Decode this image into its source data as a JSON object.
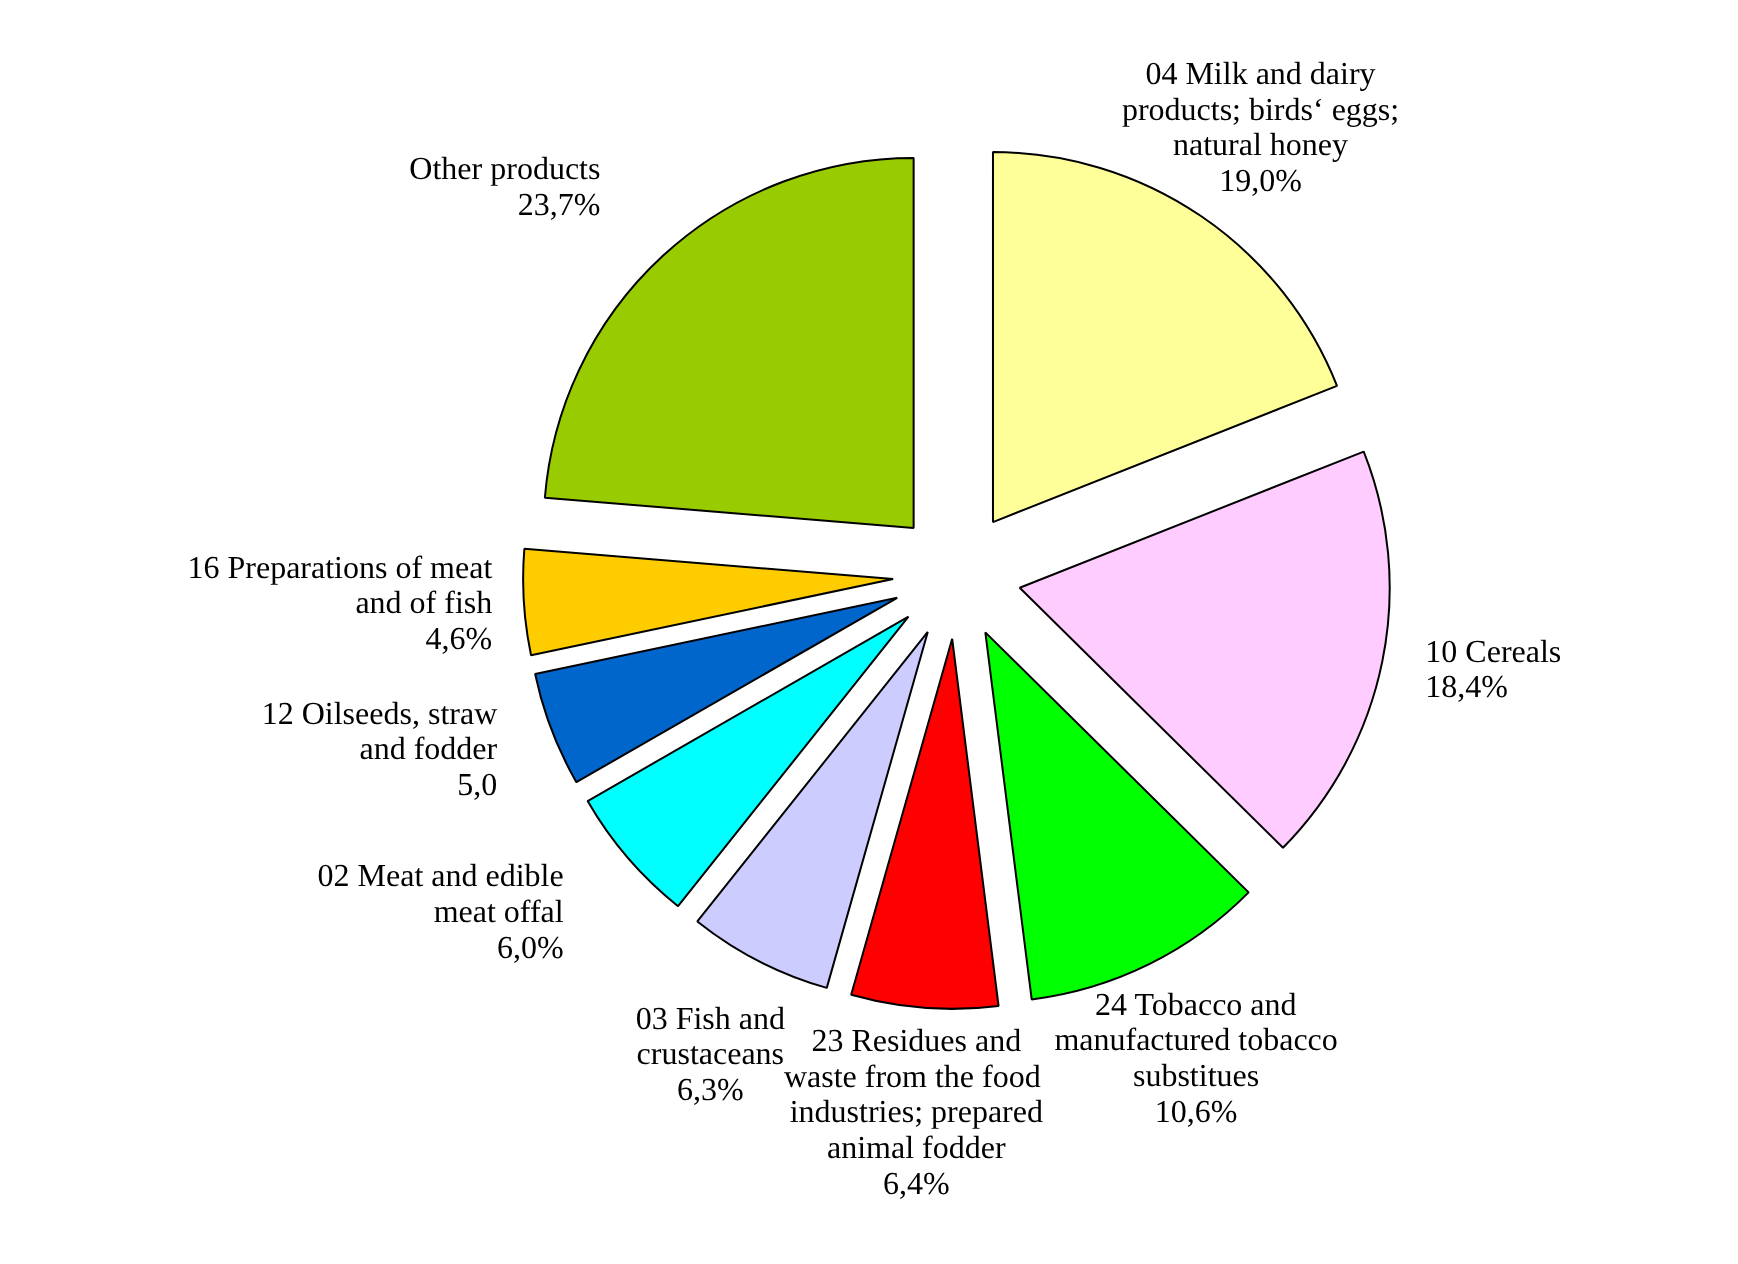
{
  "chart_data": {
    "type": "pie",
    "categories": [
      "04 Milk and dairy\nproducts; birds‘ eggs;\nnatural honey",
      "10 Cereals",
      "24 Tobacco and\nmanufactured tobacco\nsubstitues",
      "23 Residues and\nwaste from the  food\nindustries; prepared\nanimal fodder",
      "03 Fish and\ncrustaceans",
      "02 Meat and edible\nmeat offal",
      "12 Oilseeds, straw\nand fodder",
      "16 Preparations of meat\nand of fish",
      "Other products"
    ],
    "values": [
      19.0,
      18.4,
      10.6,
      6.4,
      6.3,
      6.0,
      5.0,
      4.6,
      23.7
    ],
    "colors": [
      "#ffff99",
      "#ffccff",
      "#00ff00",
      "#ff0000",
      "#ccccff",
      "#00ffff",
      "#0066cc",
      "#ffcc00",
      "#99cc00"
    ],
    "value_labels": [
      "19,0%",
      "18,4%",
      "10,6%",
      "6,4%",
      "6,3%",
      "6,0%",
      "5,0",
      "4,6%",
      "23,7%"
    ]
  }
}
